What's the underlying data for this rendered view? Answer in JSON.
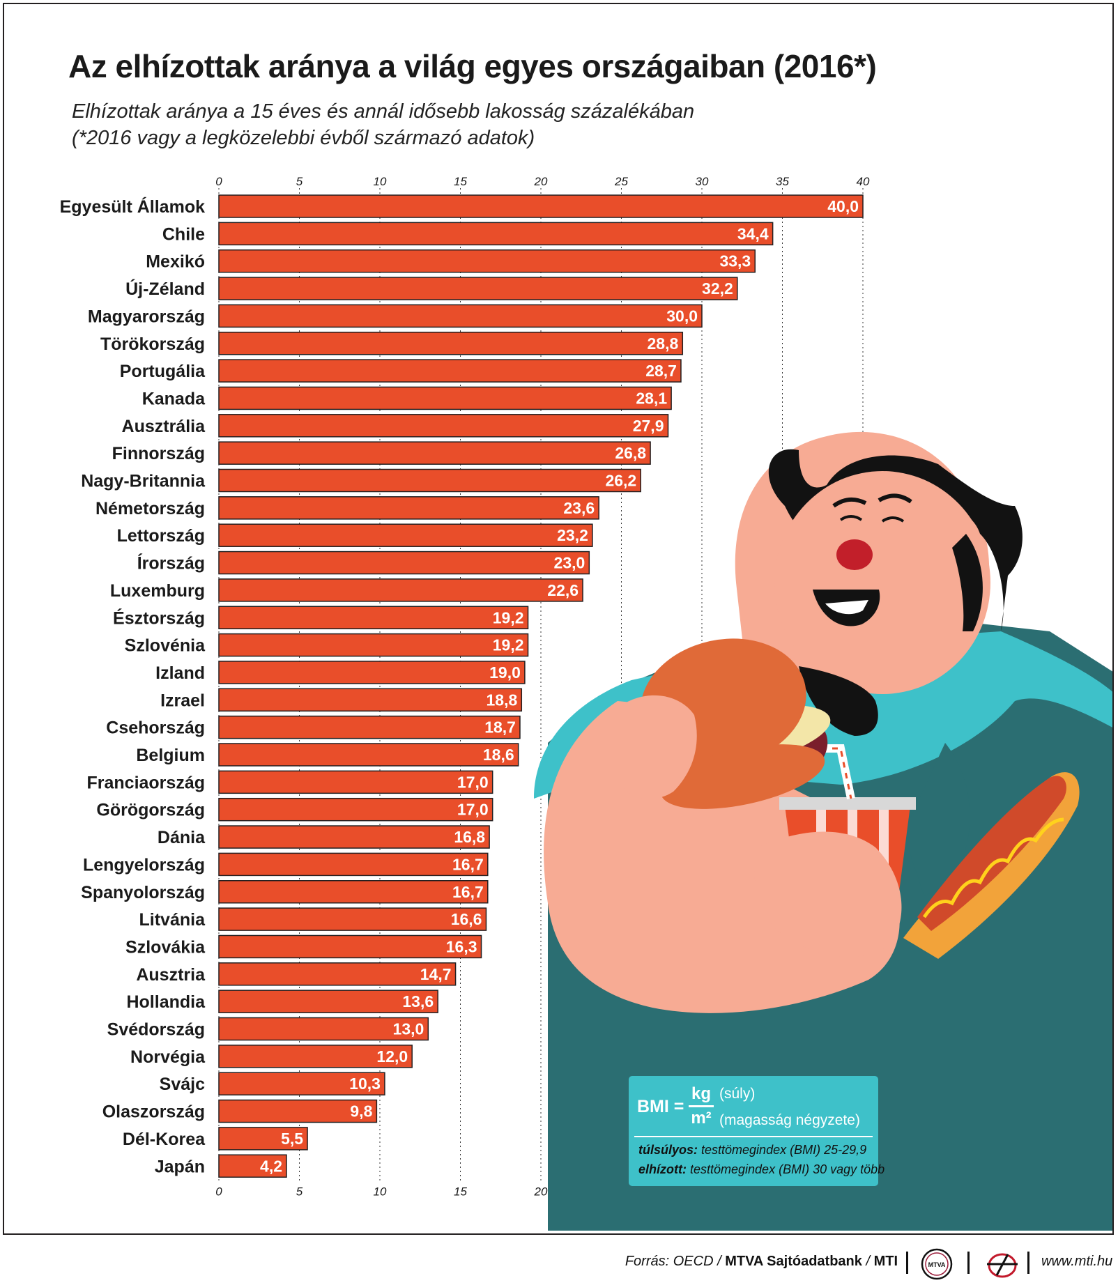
{
  "chart_data": {
    "type": "bar",
    "orientation": "horizontal",
    "title": "Az elhízottak aránya a világ egyes országaiban (2016*)",
    "subtitle": [
      "Elhízottak aránya a 15 éves és annál idősebb lakosság százalékában",
      "(*2016 vagy a legközelebbi évből származó adatok)"
    ],
    "categories": [
      "Egyesült Államok",
      "Chile",
      "Mexikó",
      "Új-Zéland",
      "Magyarország",
      "Törökország",
      "Portugália",
      "Kanada",
      "Ausztrália",
      "Finnország",
      "Nagy-Britannia",
      "Németország",
      "Lettország",
      "Írország",
      "Luxemburg",
      "Észtország",
      "Szlovénia",
      "Izland",
      "Izrael",
      "Csehország",
      "Belgium",
      "Franciaország",
      "Görögország",
      "Dánia",
      "Lengyelország",
      "Spanyolország",
      "Litvánia",
      "Szlovákia",
      "Ausztria",
      "Hollandia",
      "Svédország",
      "Norvégia",
      "Svájc",
      "Olaszország",
      "Dél-Korea",
      "Japán"
    ],
    "values": [
      40.0,
      34.4,
      33.3,
      32.2,
      30.0,
      28.8,
      28.7,
      28.1,
      27.9,
      26.8,
      26.2,
      23.6,
      23.2,
      23.0,
      22.6,
      19.2,
      19.2,
      19.0,
      18.8,
      18.7,
      18.6,
      17.0,
      17.0,
      16.8,
      16.7,
      16.7,
      16.6,
      16.3,
      14.7,
      13.6,
      13.0,
      12.0,
      10.3,
      9.8,
      5.5,
      4.2
    ],
    "value_labels": [
      "40,0",
      "34,4",
      "33,3",
      "32,2",
      "30,0",
      "28,8",
      "28,7",
      "28,1",
      "27,9",
      "26,8",
      "26,2",
      "23,6",
      "23,2",
      "23,0",
      "22,6",
      "19,2",
      "19,2",
      "19,0",
      "18,8",
      "18,7",
      "18,6",
      "17,0",
      "17,0",
      "16,8",
      "16,7",
      "16,7",
      "16,6",
      "16,3",
      "14,7",
      "13,6",
      "13,0",
      "12,0",
      "10,3",
      "9,8",
      "5,5",
      "4,2"
    ],
    "xlim": [
      0,
      40
    ],
    "top_ticks": [
      "0",
      "5",
      "10",
      "15",
      "20",
      "25",
      "30",
      "35",
      "40"
    ],
    "bottom_ticks": [
      "0",
      "5",
      "10",
      "15",
      "20"
    ],
    "grid": true,
    "bar_color": "#e94e2a"
  },
  "bmi_box": {
    "label": "BMI =",
    "numerator": "kg",
    "numerator_note": "(súly)",
    "denominator": "m²",
    "denominator_note": "(magasság négyzete)",
    "overweight_term": "túlsúlyos:",
    "overweight_desc": " testtömegindex (BMI) 25-29,9",
    "obese_term": "elhízott:",
    "obese_desc": " testtömegindex (BMI) 30 vagy több"
  },
  "footer": {
    "source_prefix": "Forrás: OECD / ",
    "source_org": "MTVA Sajtóadatbank",
    "source_sep": " / ",
    "source_mti": "MTI",
    "logo_text": "MTVA",
    "url": "www.mti.hu"
  },
  "colors": {
    "bar": "#e94e2a",
    "skin": "#f7ab94",
    "shirt": "#3ec1c9",
    "overalls": "#2b6e72",
    "hair": "#121212",
    "bmi_box": "#3ec1c9"
  }
}
